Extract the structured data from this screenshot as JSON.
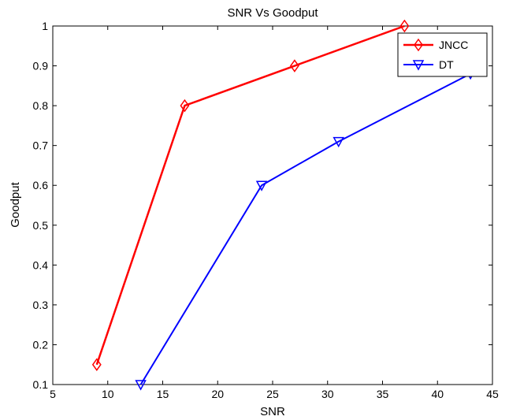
{
  "chart_data": {
    "type": "line",
    "title": "SNR Vs Goodput",
    "xlabel": "SNR",
    "ylabel": "Goodput",
    "xlim": [
      5,
      45
    ],
    "ylim": [
      0.1,
      1.0
    ],
    "xticks": [
      "5",
      "10",
      "15",
      "20",
      "25",
      "30",
      "35",
      "40",
      "45"
    ],
    "yticks": [
      "0.1",
      "0.2",
      "0.3",
      "0.4",
      "0.5",
      "0.6",
      "0.7",
      "0.8",
      "0.9",
      "1"
    ],
    "grid": false,
    "legend_position": "top-right",
    "series": [
      {
        "name": "JNCC",
        "color": "#ff0000",
        "marker": "diamond",
        "x": [
          9,
          17,
          27,
          37
        ],
        "y": [
          0.15,
          0.8,
          0.9,
          1.0
        ]
      },
      {
        "name": "DT",
        "color": "#0000ff",
        "marker": "triangle-down",
        "x": [
          13,
          24,
          31,
          43
        ],
        "y": [
          0.1,
          0.6,
          0.71,
          0.88
        ]
      }
    ]
  }
}
